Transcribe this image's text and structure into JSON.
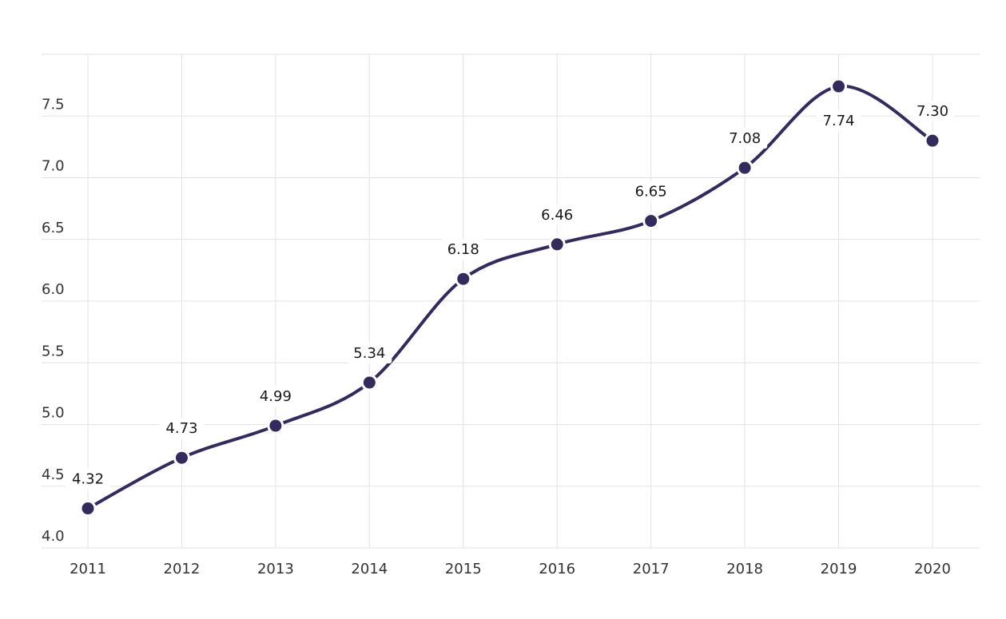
{
  "chart_data": {
    "type": "line",
    "categories": [
      "2011",
      "2012",
      "2013",
      "2014",
      "2015",
      "2016",
      "2017",
      "2018",
      "2019",
      "2020"
    ],
    "values": [
      4.32,
      4.73,
      4.99,
      5.34,
      6.18,
      6.46,
      6.65,
      7.08,
      7.74,
      7.3
    ],
    "value_labels": [
      "4.32",
      "4.73",
      "4.99",
      "5.34",
      "6.18",
      "6.46",
      "6.65",
      "7.08",
      "7.74",
      "7.30"
    ],
    "y_ticks": [
      4.0,
      4.5,
      5.0,
      5.5,
      6.0,
      6.5,
      7.0,
      7.5
    ],
    "y_tick_labels": [
      "4.0",
      "4.5",
      "5.0",
      "5.5",
      "6.0",
      "6.5",
      "7.0",
      "7.5"
    ],
    "ylim": [
      4.0,
      8.0
    ],
    "grid": true,
    "smooth": true,
    "legend": "none",
    "line_color": "#352a5c",
    "point_color": "#352a5c"
  }
}
